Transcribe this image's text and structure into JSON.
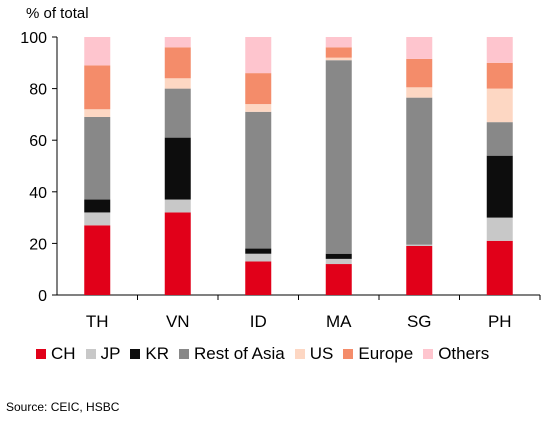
{
  "chart_data": {
    "type": "bar",
    "stacked": true,
    "ylabel": "% of total",
    "ylim": [
      0,
      100
    ],
    "yticks": [
      0,
      20,
      40,
      60,
      80,
      100
    ],
    "categories": [
      "TH",
      "VN",
      "ID",
      "MA",
      "SG",
      "PH"
    ],
    "series": [
      {
        "name": "CH",
        "color": "#e10019",
        "values": [
          27,
          32,
          13,
          12,
          19,
          21
        ]
      },
      {
        "name": "JP",
        "color": "#c8c8c8",
        "values": [
          5,
          5,
          3,
          2,
          0.5,
          9
        ]
      },
      {
        "name": "KR",
        "color": "#0d0d0d",
        "values": [
          5,
          24,
          2,
          2,
          0,
          24
        ]
      },
      {
        "name": "Rest of Asia",
        "color": "#888888",
        "values": [
          32,
          19,
          53,
          75,
          57,
          13
        ]
      },
      {
        "name": "US",
        "color": "#fdd7c3",
        "values": [
          3,
          4,
          3,
          1,
          4,
          13
        ]
      },
      {
        "name": "Europe",
        "color": "#f48c6a",
        "values": [
          17,
          12,
          12,
          4,
          11,
          10
        ]
      },
      {
        "name": "Others",
        "color": "#fec5ce",
        "values": [
          11,
          4,
          14,
          4,
          8.5,
          10
        ]
      }
    ],
    "legend_position": "bottom",
    "grid": false
  },
  "source": "Source:  CEIC, HSBC"
}
